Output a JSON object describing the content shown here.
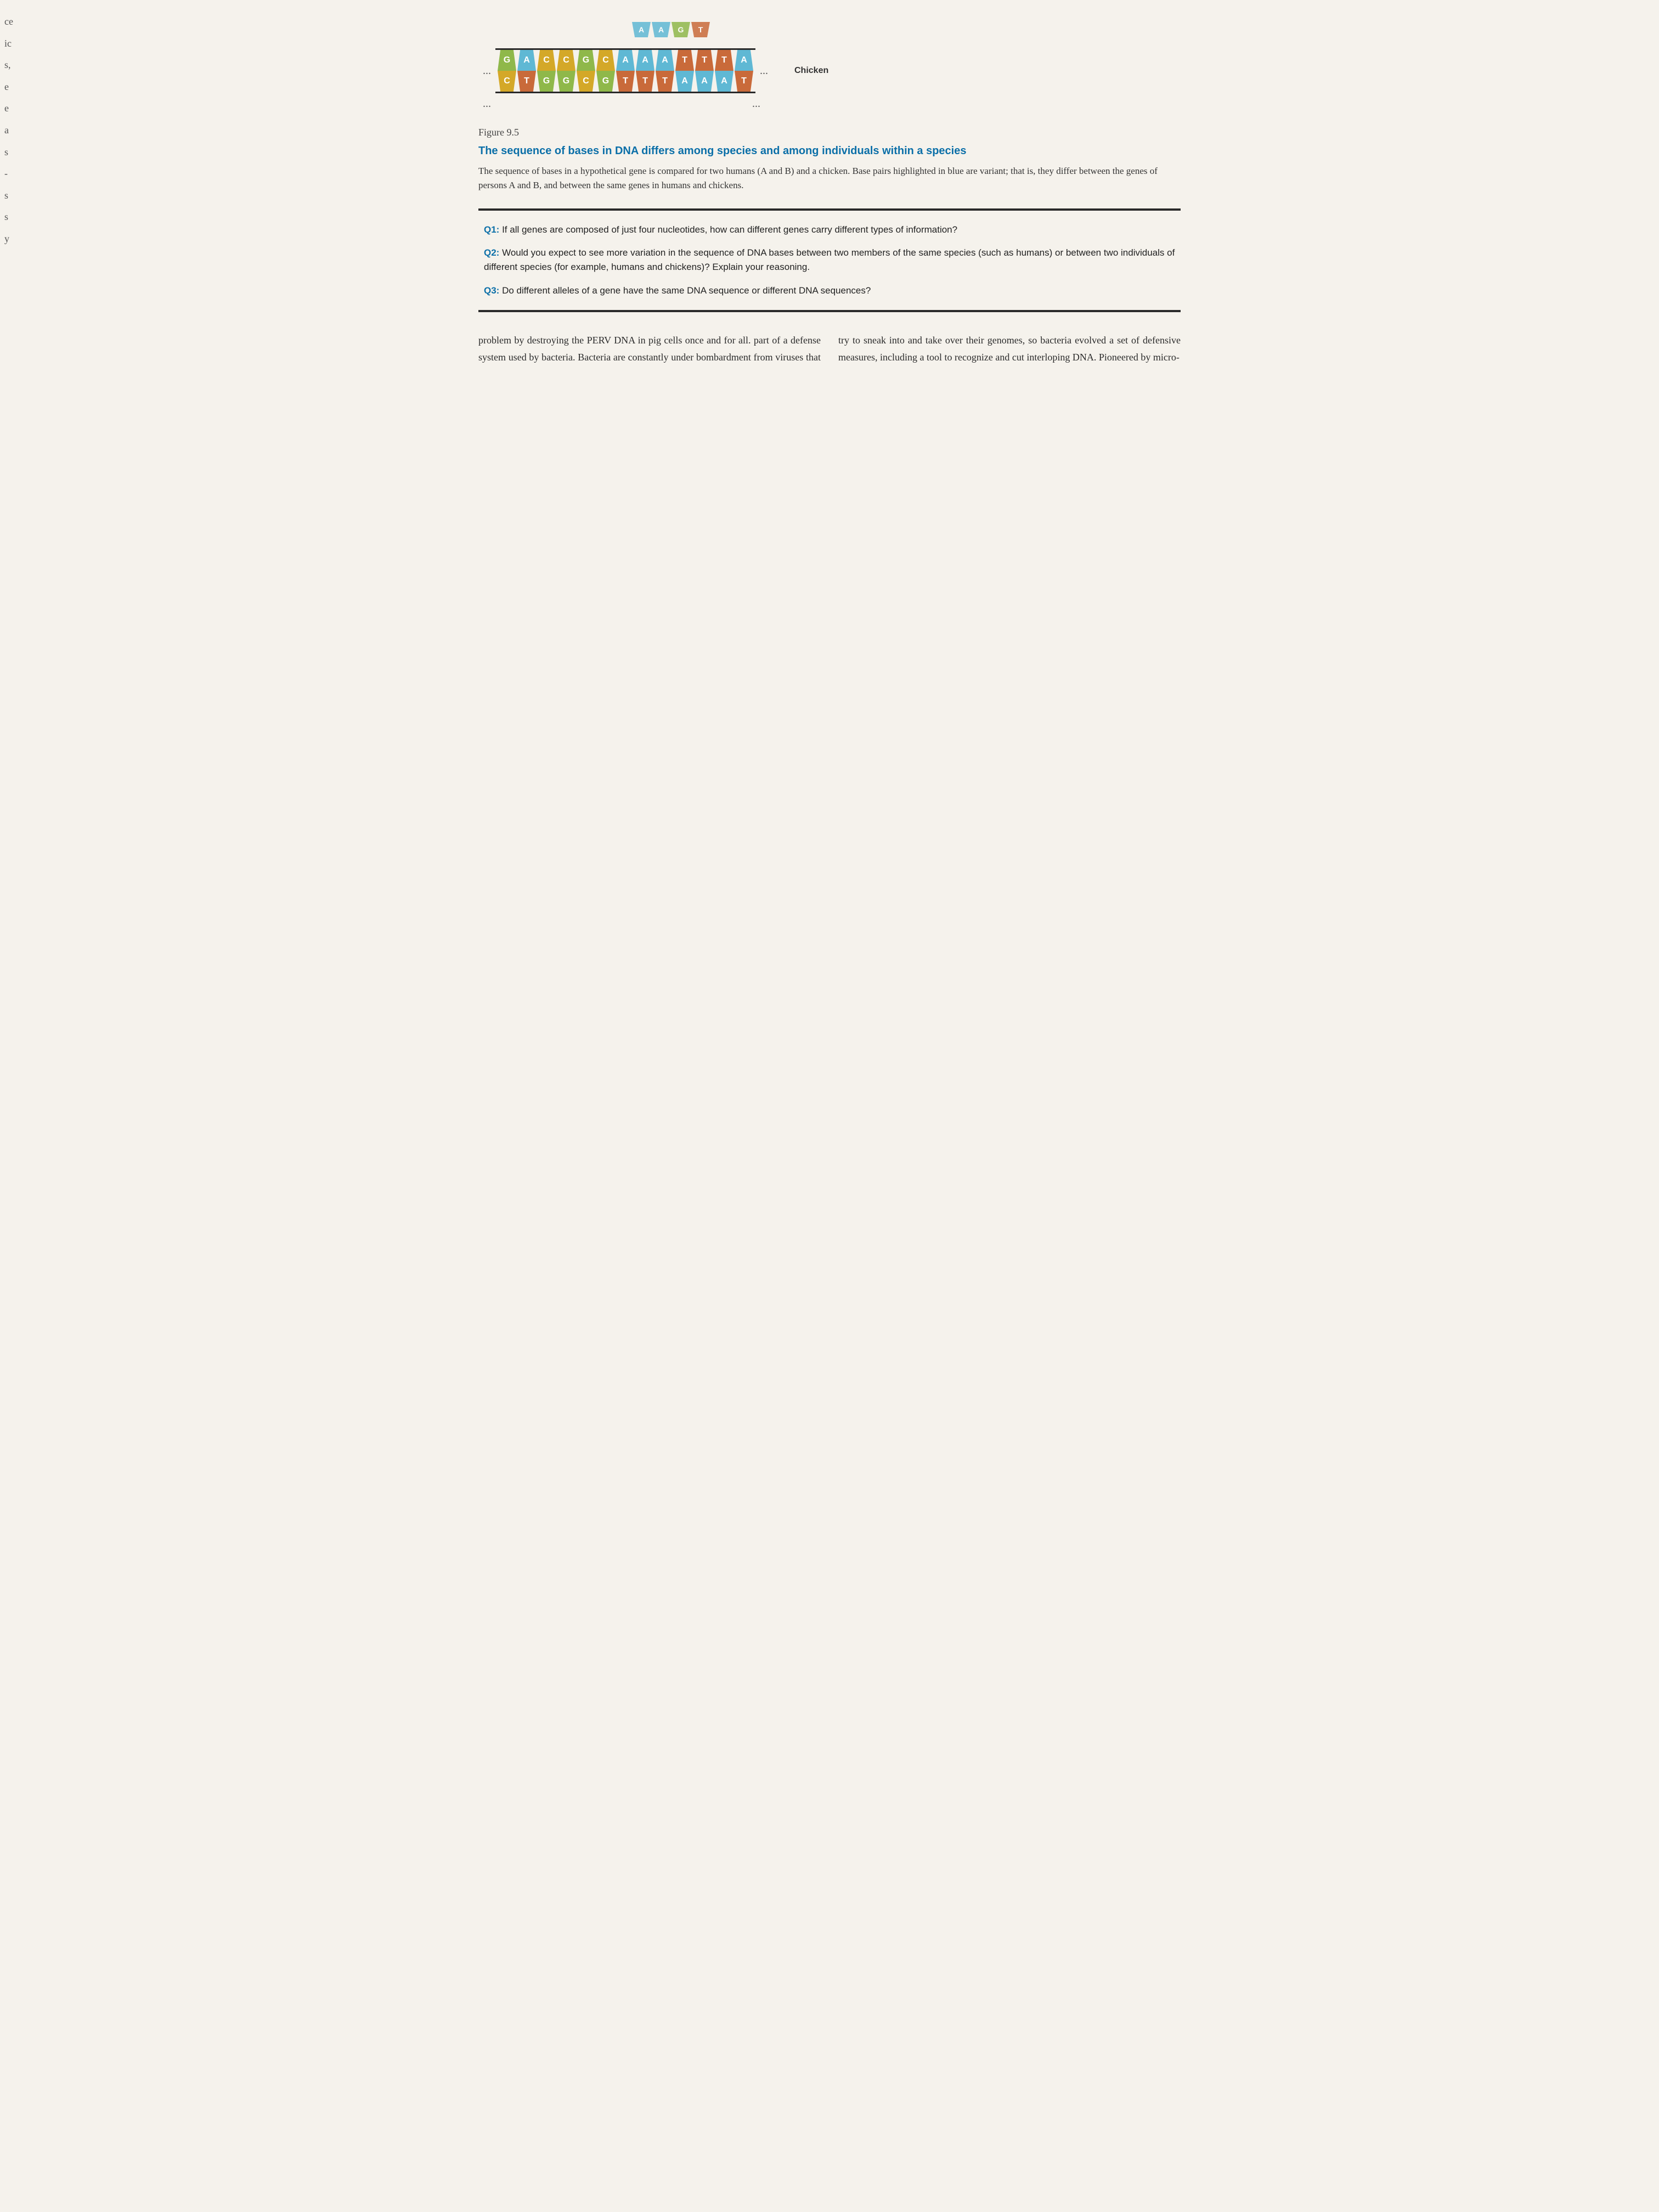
{
  "marginLetters": [
    "ce",
    "ic",
    "s,",
    "e",
    "e",
    "a",
    "s",
    "-",
    "s",
    "s",
    "y"
  ],
  "figure": {
    "label": "Figure 9.5",
    "title": "The sequence of bases in DNA differs among species and among individuals within a species",
    "caption": "The sequence of bases in a hypothetical gene is compared for two humans (A and B) and a chicken. Base pairs highlighted in blue are variant; that is, they differ between the genes of persons A and B, and between the same genes in humans and chickens."
  },
  "dna": {
    "cutoffTop": [
      "A",
      "A",
      "G",
      "T"
    ],
    "ellipsis": "...",
    "speciesLabel": "Chicken",
    "top": [
      "G",
      "A",
      "C",
      "C",
      "G",
      "C",
      "A",
      "A",
      "A",
      "T",
      "T",
      "T",
      "A"
    ],
    "bottom": [
      "C",
      "T",
      "G",
      "G",
      "C",
      "G",
      "T",
      "T",
      "T",
      "A",
      "A",
      "A",
      "T"
    ],
    "colorMap": {
      "G": "#8fb84a",
      "C": "#d4a828",
      "A": "#5fb8d4",
      "T": "#c96a3a"
    },
    "baseWidth": 34,
    "baseHeight": 38,
    "fontSize": 16
  },
  "questions": {
    "q1": {
      "label": "Q1:",
      "text": "If all genes are composed of just four nucleotides, how can different genes carry different types of information?"
    },
    "q2": {
      "label": "Q2:",
      "text": "Would you expect to see more variation in the sequence of DNA bases between two members of the same species (such as humans) or between two individuals of different species (for example, humans and chickens)? Explain your reasoning."
    },
    "q3": {
      "label": "Q3:",
      "text": "Do different alleles of a gene have the same DNA sequence or different DNA sequences?"
    }
  },
  "body": {
    "left": "problem by destroying the PERV DNA in pig cells once and for all.",
    "right": "part of a defense system used by bacteria. Bacteria are constantly under bombardment from viruses that try to sneak into and take over their genomes, so bacteria evolved a set of defensive measures, including a tool to recognize and cut interloping DNA. Pioneered by micro-"
  },
  "colors": {
    "titleBlue": "#0b6fa8",
    "bodyText": "#2a2a2a",
    "pageBg": "#f5f2ec",
    "ruleDark": "#2a2a2a"
  }
}
